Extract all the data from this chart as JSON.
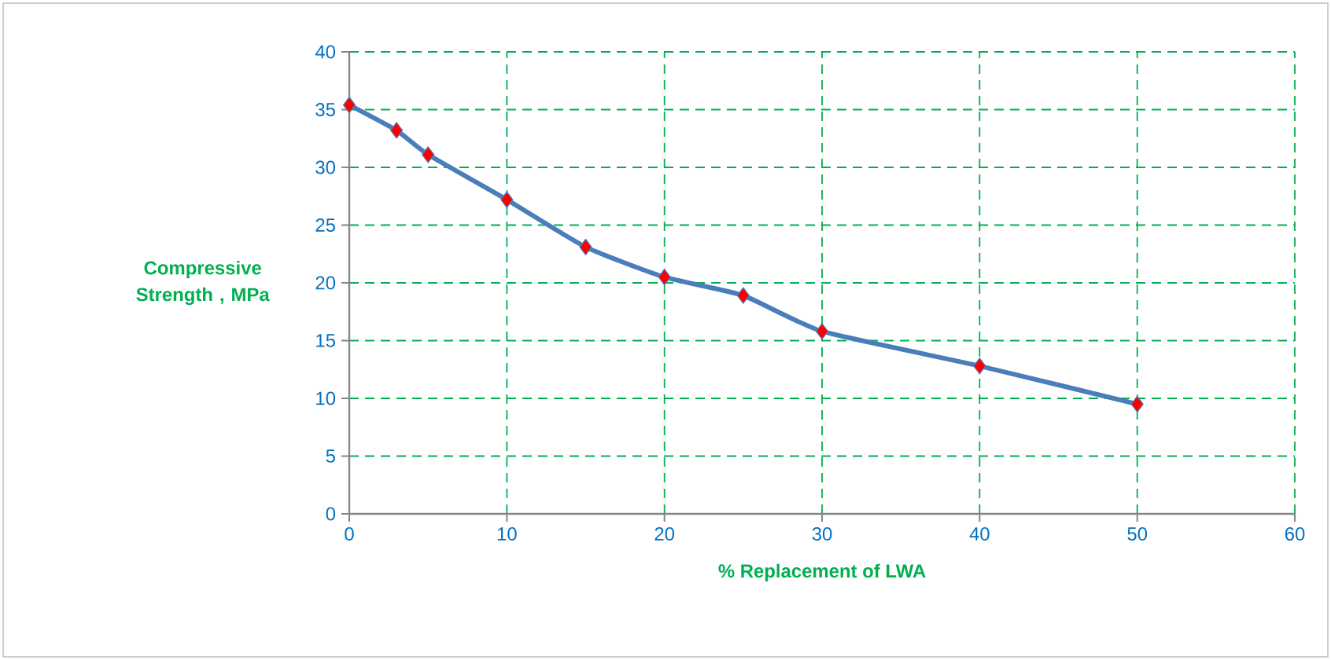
{
  "chart_data": {
    "type": "line",
    "xlabel": "% Replacement of LWA",
    "ylabel": "Compressive Strength , MPa",
    "x": [
      0,
      3,
      5,
      10,
      15,
      20,
      25,
      30,
      40,
      50
    ],
    "series": [
      {
        "color": "#4a7ebb",
        "values": [
          35.4,
          33.2,
          31.1,
          27.2,
          23.1,
          20.5,
          18.9,
          15.8,
          12.8,
          9.5
        ]
      }
    ],
    "xlim": [
      0,
      60
    ],
    "ylim": [
      0,
      40
    ],
    "xticks": [
      0,
      10,
      20,
      30,
      40,
      50,
      60
    ],
    "yticks": [
      0,
      5,
      10,
      15,
      20,
      25,
      30,
      35,
      40
    ],
    "grid": true,
    "marker": "diamond",
    "line_style": "solid"
  }
}
